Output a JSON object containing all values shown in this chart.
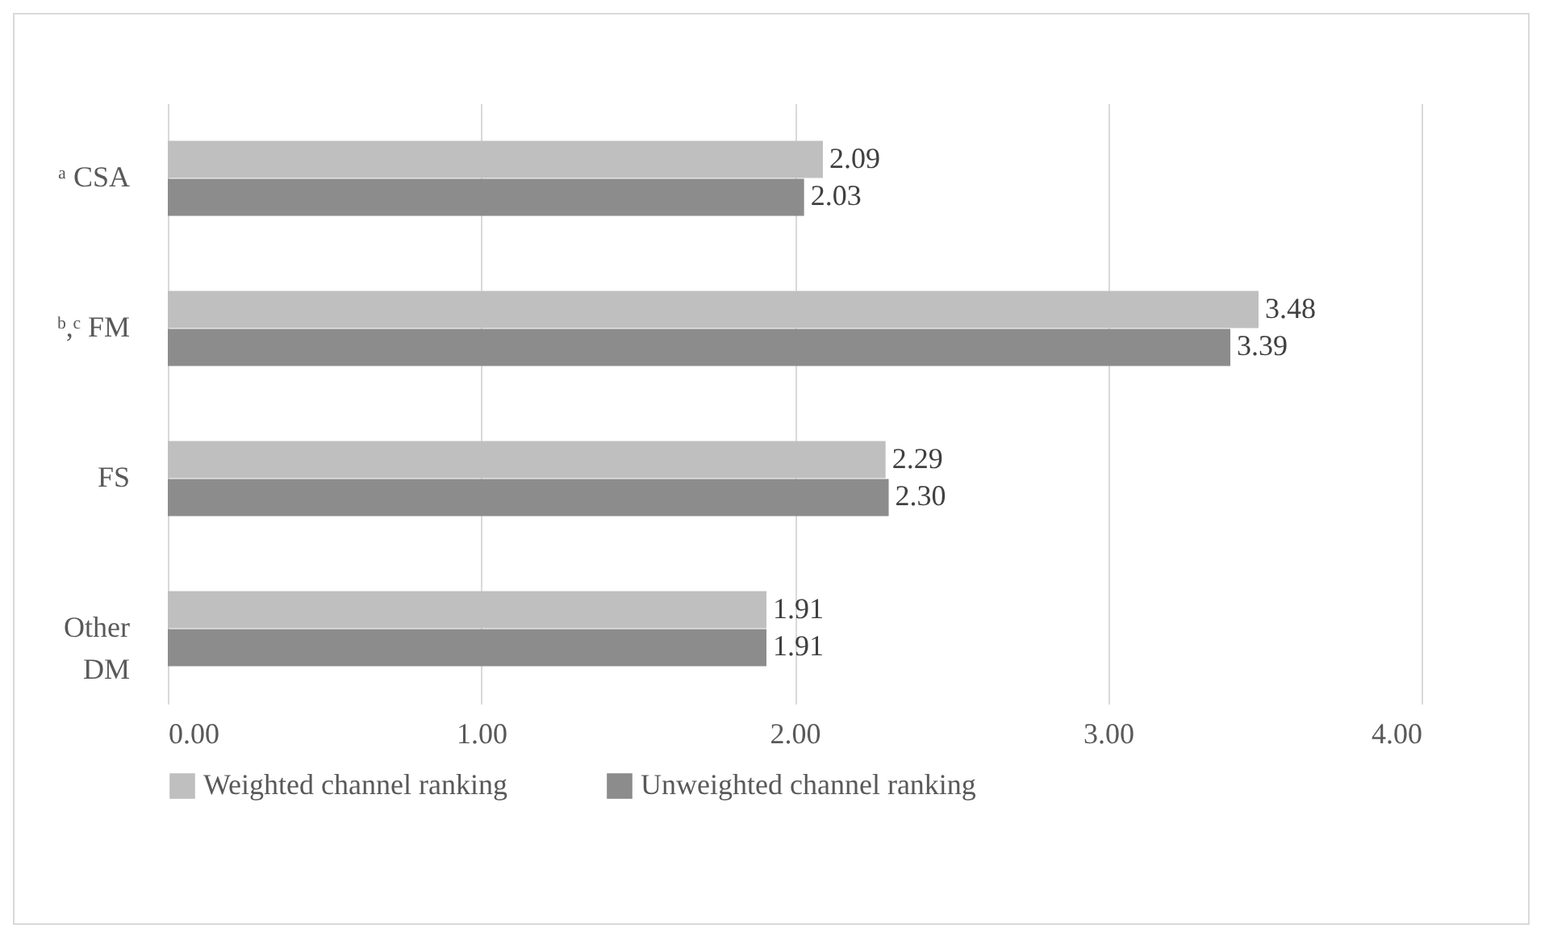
{
  "chart_data": {
    "type": "bar",
    "orientation": "horizontal",
    "categories": [
      "ᵃ CSA",
      "ᵇ,ᶜ FM",
      "FS",
      "Other DM"
    ],
    "series": [
      {
        "name": "Weighted channel ranking",
        "color": "#bfbfbf",
        "values": [
          2.09,
          3.48,
          2.29,
          1.91
        ],
        "value_labels": [
          "2.09",
          "3.48",
          "2.29",
          "1.91"
        ]
      },
      {
        "name": "Unweighted channel ranking",
        "color": "#8c8c8c",
        "values": [
          2.03,
          3.39,
          2.3,
          1.91
        ],
        "value_labels": [
          "2.03",
          "3.39",
          "2.30",
          "1.91"
        ]
      }
    ],
    "xlim": [
      0,
      4
    ],
    "xticks": [
      {
        "value": 0,
        "label": "0.00"
      },
      {
        "value": 1,
        "label": "1.00"
      },
      {
        "value": 2,
        "label": "2.00"
      },
      {
        "value": 3,
        "label": "3.00"
      },
      {
        "value": 4,
        "label": "4.00"
      }
    ],
    "grid": "x",
    "legend": "bottom"
  }
}
